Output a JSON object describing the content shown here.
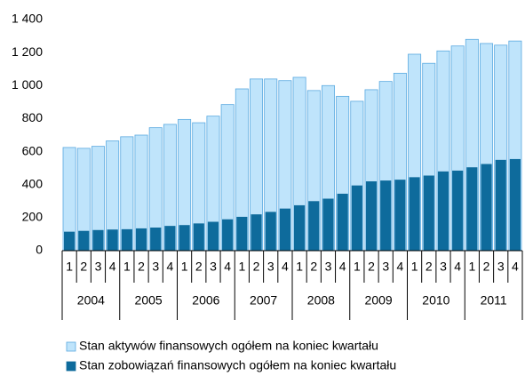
{
  "chart_data": {
    "type": "bar",
    "overlap": true,
    "categories": [
      "1",
      "2",
      "3",
      "4",
      "1",
      "2",
      "3",
      "4",
      "1",
      "2",
      "3",
      "4",
      "1",
      "2",
      "3",
      "4",
      "1",
      "2",
      "3",
      "4",
      "1",
      "2",
      "3",
      "4",
      "1",
      "2",
      "3",
      "4",
      "1",
      "2",
      "3",
      "4"
    ],
    "category_groups": [
      "2004",
      "2005",
      "2006",
      "2007",
      "2008",
      "2009",
      "2010",
      "2011"
    ],
    "series": [
      {
        "name": "Stan aktywów finansowych ogółem na koniec kwartału",
        "color": "#bfe4fb",
        "stroke": "#5aa9e0",
        "values": [
          625,
          620,
          632,
          665,
          690,
          700,
          745,
          765,
          795,
          775,
          815,
          885,
          980,
          1040,
          1040,
          1030,
          1050,
          970,
          1000,
          935,
          905,
          975,
          1025,
          1075,
          1190,
          1135,
          1210,
          1240,
          1280,
          1255,
          1245,
          1270
        ]
      },
      {
        "name": "Stan zobowiązań finansowych ogółem na koniec kwartału",
        "color": "#0e6b9c",
        "stroke": "#0e6b9c",
        "values": [
          115,
          120,
          125,
          128,
          130,
          135,
          140,
          150,
          155,
          165,
          175,
          190,
          205,
          220,
          235,
          255,
          275,
          300,
          315,
          345,
          395,
          420,
          425,
          430,
          445,
          455,
          480,
          485,
          505,
          525,
          550,
          555
        ]
      }
    ],
    "ylim": [
      0,
      1400
    ],
    "yticks": [
      0,
      200,
      400,
      600,
      800,
      {
        "value": 1000,
        "label": "1 000"
      },
      {
        "value": 1200,
        "label": "1 200"
      },
      {
        "value": 1400,
        "label": "1 400"
      }
    ],
    "grid": false
  }
}
